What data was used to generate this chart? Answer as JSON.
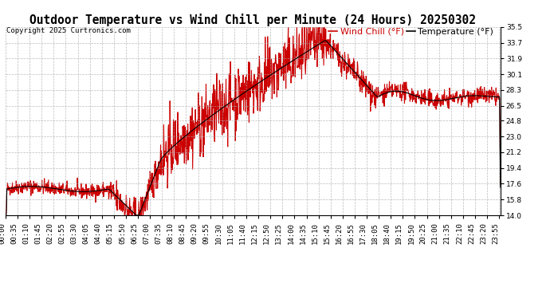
{
  "title": "Outdoor Temperature vs Wind Chill per Minute (24 Hours) 20250302",
  "copyright": "Copyright 2025 Curtronics.com",
  "legend_wind_chill": "Wind Chill (°F)",
  "legend_temperature": "Temperature (°F)",
  "wind_chill_color": "#cc0000",
  "temperature_color": "black",
  "background_color": "#ffffff",
  "grid_color": "#aaaaaa",
  "yticks": [
    14.0,
    15.8,
    17.6,
    19.4,
    21.2,
    23.0,
    24.8,
    26.5,
    28.3,
    30.1,
    31.9,
    33.7,
    35.5
  ],
  "ymin": 14.0,
  "ymax": 35.5,
  "title_fontsize": 10.5,
  "copyright_fontsize": 6.5,
  "legend_fontsize": 8,
  "tick_fontsize": 6.5,
  "xlabel_rotation": 90,
  "line_width": 0.8,
  "figwidth": 6.9,
  "figheight": 3.75,
  "dpi": 100
}
